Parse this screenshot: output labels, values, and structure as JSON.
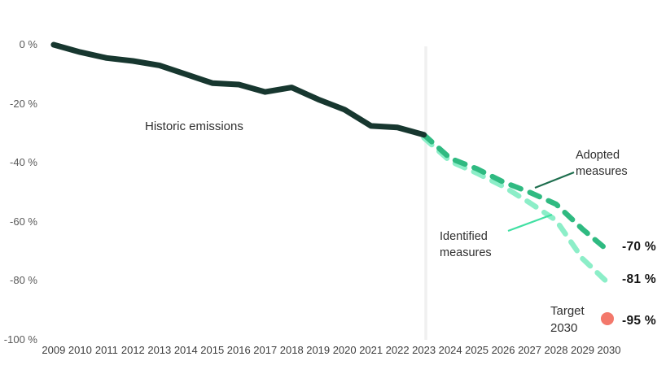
{
  "chart_data": {
    "type": "line",
    "title": "",
    "x_ticks": [
      "2009",
      "2010",
      "2011",
      "2012",
      "2013",
      "2014",
      "2015",
      "2016",
      "2017",
      "2018",
      "2019",
      "2020",
      "2021",
      "2022",
      "2023",
      "2024",
      "2025",
      "2026",
      "2027",
      "2028",
      "2029",
      "2030"
    ],
    "y_ticks": [
      {
        "label": "0 %",
        "value": 0
      },
      {
        "label": "-20 %",
        "value": -20
      },
      {
        "label": "-40 %",
        "value": -40
      },
      {
        "label": "-60 %",
        "value": -60
      },
      {
        "label": "-80 %",
        "value": -80
      },
      {
        "label": "-100 %",
        "value": -100
      }
    ],
    "x_range": [
      2009,
      2030
    ],
    "y_range": [
      0,
      -100
    ],
    "grid": false,
    "reference_line_year": 2023,
    "series": [
      {
        "name": "Historic emissions",
        "style": "solid",
        "color": "#17372f",
        "points": [
          [
            2009,
            0
          ],
          [
            2010,
            -2.5
          ],
          [
            2011,
            -4.5
          ],
          [
            2012,
            -5.5
          ],
          [
            2013,
            -7
          ],
          [
            2014,
            -10
          ],
          [
            2015,
            -13
          ],
          [
            2016,
            -13.5
          ],
          [
            2017,
            -16
          ],
          [
            2018,
            -14.5
          ],
          [
            2019,
            -18.5
          ],
          [
            2020,
            -22
          ],
          [
            2021,
            -27.5
          ],
          [
            2022,
            -28
          ],
          [
            2023,
            -30.5
          ]
        ]
      },
      {
        "name": "Adopted measures",
        "style": "dashed",
        "color": "#2fba81",
        "end_label": "-70 %",
        "points": [
          [
            2023,
            -30.5
          ],
          [
            2024,
            -38.5
          ],
          [
            2025,
            -42
          ],
          [
            2026,
            -46.5
          ],
          [
            2027,
            -50
          ],
          [
            2028,
            -54
          ],
          [
            2029,
            -62.5
          ],
          [
            2030,
            -70
          ]
        ]
      },
      {
        "name": "Identified measures",
        "style": "dashed",
        "color": "#8ceec8",
        "end_label": "-81 %",
        "points": [
          [
            2023,
            -31.5
          ],
          [
            2024,
            -39.5
          ],
          [
            2025,
            -43.5
          ],
          [
            2026,
            -48
          ],
          [
            2027,
            -53.5
          ],
          [
            2028,
            -59.5
          ],
          [
            2029,
            -72.5
          ],
          [
            2030,
            -81
          ]
        ]
      }
    ],
    "target": {
      "label_line1": "Target",
      "label_line2": "2030",
      "year": 2030,
      "value": -95,
      "end_label": "-95 %",
      "color": "#f3786b"
    }
  },
  "annotations": {
    "historic": "Historic emissions",
    "adopted_line1": "Adopted",
    "adopted_line2": "measures",
    "identified_line1": "Identified",
    "identified_line2": "measures"
  },
  "callouts": {
    "adopted_color": "#1e6e4e",
    "identified_color": "#41e0a3"
  },
  "colors": {
    "reference_line": "#f0f0f0",
    "background": "#ffffff"
  }
}
